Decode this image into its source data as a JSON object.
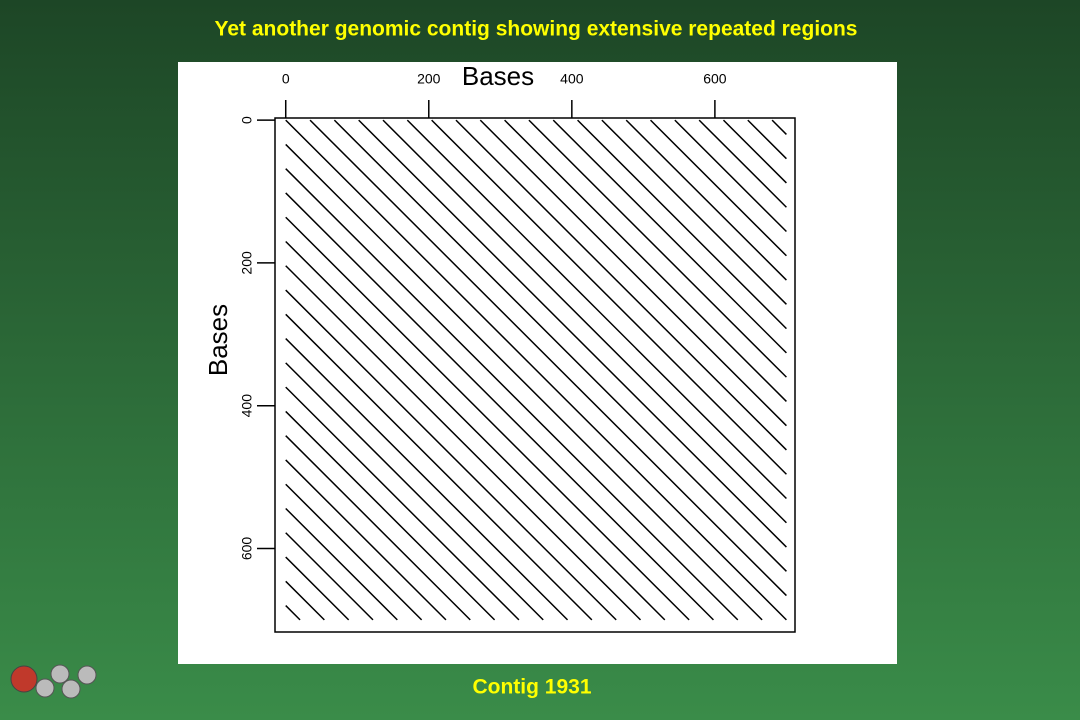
{
  "chart_data": {
    "type": "dotplot",
    "title": "Yet another genomic contig showing extensive repeated regions",
    "footer": "Contig 1931",
    "x_label": "Bases",
    "y_label": "Bases",
    "xlim": [
      -15,
      712
    ],
    "ylim": [
      -3,
      717
    ],
    "xticks": [
      0,
      200,
      400,
      600
    ],
    "yticks": [
      0,
      200,
      400,
      600
    ],
    "color": "#000000",
    "series": [
      {
        "x": [
          0,
          700
        ],
        "y": [
          0,
          700
        ]
      },
      {
        "x": [
          34,
          700
        ],
        "y": [
          0,
          666
        ]
      },
      {
        "x": [
          68,
          700
        ],
        "y": [
          0,
          632
        ]
      },
      {
        "x": [
          102,
          700
        ],
        "y": [
          0,
          598
        ]
      },
      {
        "x": [
          136,
          700
        ],
        "y": [
          0,
          564
        ]
      },
      {
        "x": [
          170,
          700
        ],
        "y": [
          0,
          530
        ]
      },
      {
        "x": [
          204,
          700
        ],
        "y": [
          0,
          496
        ]
      },
      {
        "x": [
          238,
          700
        ],
        "y": [
          0,
          462
        ]
      },
      {
        "x": [
          272,
          700
        ],
        "y": [
          0,
          428
        ]
      },
      {
        "x": [
          306,
          700
        ],
        "y": [
          0,
          394
        ]
      },
      {
        "x": [
          340,
          700
        ],
        "y": [
          0,
          360
        ]
      },
      {
        "x": [
          374,
          700
        ],
        "y": [
          0,
          326
        ]
      },
      {
        "x": [
          408,
          700
        ],
        "y": [
          0,
          292
        ]
      },
      {
        "x": [
          442,
          700
        ],
        "y": [
          0,
          258
        ]
      },
      {
        "x": [
          476,
          700
        ],
        "y": [
          0,
          224
        ]
      },
      {
        "x": [
          510,
          700
        ],
        "y": [
          0,
          190
        ]
      },
      {
        "x": [
          544,
          700
        ],
        "y": [
          0,
          156
        ]
      },
      {
        "x": [
          578,
          700
        ],
        "y": [
          0,
          122
        ]
      },
      {
        "x": [
          612,
          700
        ],
        "y": [
          0,
          88
        ]
      },
      {
        "x": [
          646,
          700
        ],
        "y": [
          0,
          54
        ]
      },
      {
        "x": [
          680,
          700
        ],
        "y": [
          0,
          20
        ]
      },
      {
        "x": [
          0,
          666
        ],
        "y": [
          34,
          700
        ]
      },
      {
        "x": [
          0,
          632
        ],
        "y": [
          68,
          700
        ]
      },
      {
        "x": [
          0,
          598
        ],
        "y": [
          102,
          700
        ]
      },
      {
        "x": [
          0,
          564
        ],
        "y": [
          136,
          700
        ]
      },
      {
        "x": [
          0,
          530
        ],
        "y": [
          170,
          700
        ]
      },
      {
        "x": [
          0,
          496
        ],
        "y": [
          204,
          700
        ]
      },
      {
        "x": [
          0,
          462
        ],
        "y": [
          238,
          700
        ]
      },
      {
        "x": [
          0,
          428
        ],
        "y": [
          272,
          700
        ]
      },
      {
        "x": [
          0,
          394
        ],
        "y": [
          306,
          700
        ]
      },
      {
        "x": [
          0,
          360
        ],
        "y": [
          340,
          700
        ]
      },
      {
        "x": [
          0,
          326
        ],
        "y": [
          374,
          700
        ]
      },
      {
        "x": [
          0,
          292
        ],
        "y": [
          408,
          700
        ]
      },
      {
        "x": [
          0,
          258
        ],
        "y": [
          442,
          700
        ]
      },
      {
        "x": [
          0,
          224
        ],
        "y": [
          476,
          700
        ]
      },
      {
        "x": [
          0,
          190
        ],
        "y": [
          510,
          700
        ]
      },
      {
        "x": [
          0,
          156
        ],
        "y": [
          544,
          700
        ]
      },
      {
        "x": [
          0,
          122
        ],
        "y": [
          578,
          700
        ]
      },
      {
        "x": [
          0,
          88
        ],
        "y": [
          612,
          700
        ]
      },
      {
        "x": [
          0,
          54
        ],
        "y": [
          646,
          700
        ]
      },
      {
        "x": [
          0,
          20
        ],
        "y": [
          680,
          700
        ]
      }
    ]
  }
}
